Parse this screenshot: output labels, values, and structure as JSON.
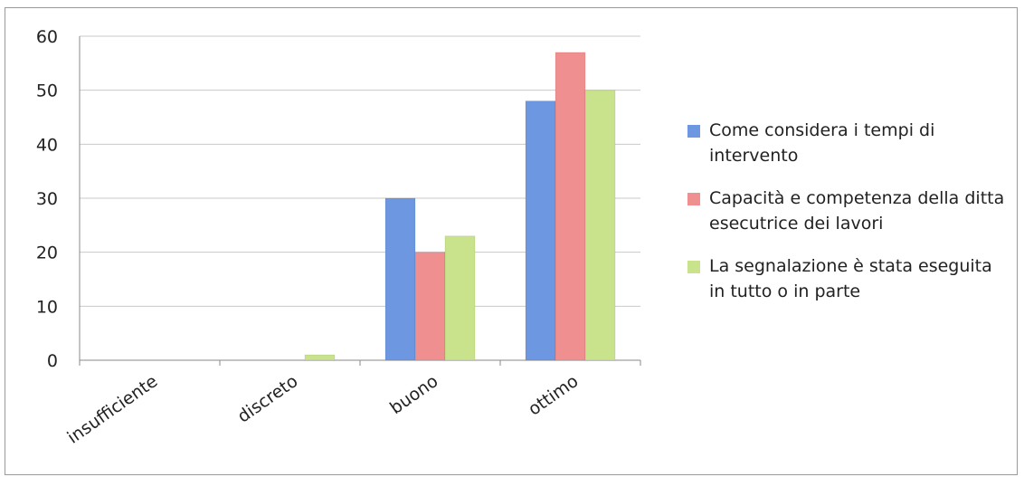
{
  "chart_data": {
    "type": "bar",
    "categories": [
      "insufficiente",
      "discreto",
      "buono",
      "ottimo"
    ],
    "series": [
      {
        "name": "Come considera i tempi di intervento",
        "values": [
          0,
          0,
          30,
          48
        ],
        "color": "#6d97e0"
      },
      {
        "name": "Capacità e competenza della ditta esecutrice dei lavori",
        "values": [
          0,
          0,
          20,
          57
        ],
        "color": "#f08f8f"
      },
      {
        "name": "La segnalazione è stata eseguita in tutto o in parte",
        "values": [
          0,
          1,
          23,
          50
        ],
        "color": "#c8e38c"
      }
    ],
    "yticks": [
      "0",
      "10",
      "20",
      "30",
      "40",
      "50",
      "60"
    ],
    "ylim": [
      0,
      60
    ],
    "grid": true,
    "legend": "right"
  }
}
